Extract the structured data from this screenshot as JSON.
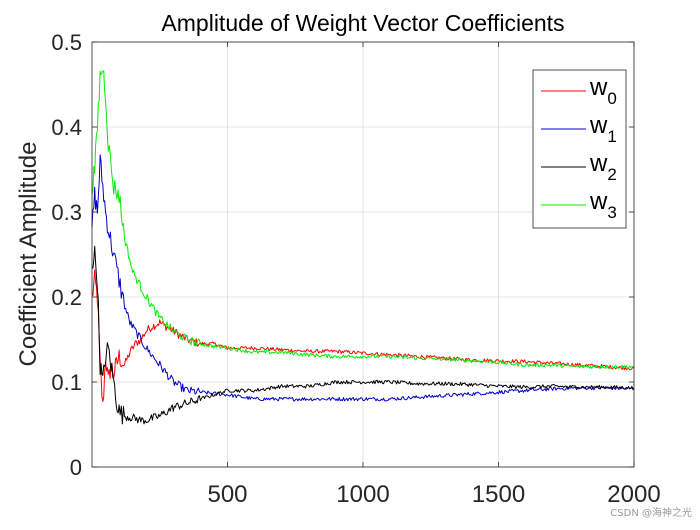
{
  "chart_data": {
    "type": "line",
    "title": "Amplitude of Weight Vector Coefficients",
    "xlabel": "",
    "ylabel": "Coefficient Amplitude",
    "xlim": [
      0,
      2000
    ],
    "ylim": [
      0,
      0.5
    ],
    "xticks": [
      500,
      1000,
      1500,
      2000
    ],
    "xtick_labels": [
      "500",
      "1000",
      "1500",
      "2000"
    ],
    "yticks": [
      0,
      0.1,
      0.2,
      0.3,
      0.4,
      0.5
    ],
    "ytick_labels": [
      "0",
      "0.1",
      "0.2",
      "0.3",
      "0.4",
      "0.5"
    ],
    "grid": true,
    "legend_position": "top-right",
    "series": [
      {
        "name": "w0",
        "label_base": "w",
        "label_sub": "0",
        "color": "#ff0000",
        "x": [
          0,
          10,
          20,
          30,
          40,
          50,
          60,
          70,
          80,
          90,
          100,
          120,
          140,
          160,
          180,
          200,
          220,
          250,
          300,
          350,
          400,
          450,
          500,
          600,
          700,
          800,
          900,
          1000,
          1100,
          1200,
          1300,
          1400,
          1500,
          1600,
          1700,
          1800,
          1900,
          2000
        ],
        "y": [
          0.2,
          0.22,
          0.2,
          0.12,
          0.07,
          0.13,
          0.1,
          0.12,
          0.11,
          0.12,
          0.13,
          0.12,
          0.135,
          0.145,
          0.15,
          0.16,
          0.165,
          0.17,
          0.16,
          0.15,
          0.145,
          0.145,
          0.14,
          0.14,
          0.138,
          0.136,
          0.136,
          0.134,
          0.132,
          0.13,
          0.128,
          0.126,
          0.125,
          0.124,
          0.122,
          0.12,
          0.118,
          0.116
        ]
      },
      {
        "name": "w1",
        "label_base": "w",
        "label_sub": "1",
        "color": "#0000cc",
        "x": [
          0,
          10,
          20,
          30,
          40,
          50,
          60,
          80,
          100,
          120,
          140,
          160,
          180,
          200,
          250,
          300,
          350,
          400,
          500,
          600,
          700,
          800,
          900,
          1000,
          1100,
          1200,
          1300,
          1400,
          1500,
          1600,
          1700,
          1800,
          1900,
          2000
        ],
        "y": [
          0.28,
          0.32,
          0.3,
          0.36,
          0.33,
          0.3,
          0.28,
          0.25,
          0.22,
          0.19,
          0.17,
          0.16,
          0.15,
          0.14,
          0.12,
          0.1,
          0.09,
          0.088,
          0.085,
          0.08,
          0.08,
          0.08,
          0.08,
          0.08,
          0.08,
          0.082,
          0.084,
          0.086,
          0.088,
          0.09,
          0.092,
          0.093,
          0.093,
          0.092
        ]
      },
      {
        "name": "w2",
        "label_base": "w",
        "label_sub": "2",
        "color": "#000000",
        "x": [
          0,
          10,
          20,
          30,
          40,
          50,
          60,
          70,
          80,
          90,
          100,
          120,
          150,
          180,
          200,
          250,
          300,
          350,
          400,
          450,
          500,
          600,
          700,
          800,
          900,
          1000,
          1100,
          1200,
          1300,
          1400,
          1500,
          1600,
          1700,
          1800,
          1900,
          2000
        ],
        "y": [
          0.24,
          0.25,
          0.22,
          0.12,
          0.1,
          0.13,
          0.14,
          0.12,
          0.1,
          0.08,
          0.065,
          0.06,
          0.058,
          0.055,
          0.055,
          0.06,
          0.07,
          0.075,
          0.08,
          0.085,
          0.09,
          0.09,
          0.095,
          0.095,
          0.1,
          0.1,
          0.1,
          0.098,
          0.098,
          0.097,
          0.095,
          0.094,
          0.095,
          0.094,
          0.094,
          0.093
        ]
      },
      {
        "name": "w3",
        "label_base": "w",
        "label_sub": "3",
        "color": "#00ee00",
        "x": [
          0,
          10,
          20,
          30,
          40,
          50,
          60,
          80,
          100,
          120,
          150,
          200,
          250,
          300,
          350,
          400,
          450,
          500,
          600,
          700,
          800,
          900,
          1000,
          1100,
          1200,
          1300,
          1400,
          1500,
          1600,
          1700,
          1800,
          1900,
          2000
        ],
        "y": [
          0.33,
          0.35,
          0.4,
          0.46,
          0.47,
          0.44,
          0.38,
          0.33,
          0.32,
          0.27,
          0.23,
          0.2,
          0.175,
          0.16,
          0.15,
          0.145,
          0.142,
          0.14,
          0.135,
          0.135,
          0.132,
          0.13,
          0.13,
          0.13,
          0.128,
          0.127,
          0.125,
          0.123,
          0.12,
          0.12,
          0.118,
          0.118,
          0.118
        ]
      }
    ]
  },
  "watermark": "CSDN @海神之光"
}
